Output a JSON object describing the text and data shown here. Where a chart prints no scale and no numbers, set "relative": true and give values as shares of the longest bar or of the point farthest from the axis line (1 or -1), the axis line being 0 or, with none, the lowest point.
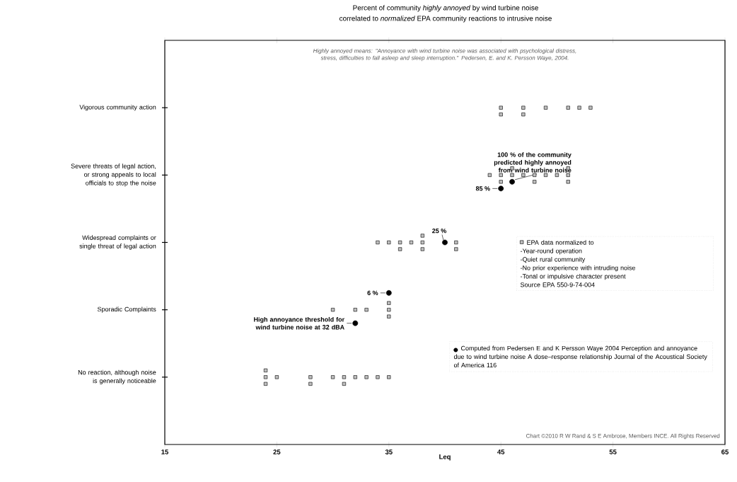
{
  "chart_data": {
    "type": "scatter",
    "title": "Percent of community *highly annoyed* by wind turbine noise",
    "subtitle": "correlated to *normalized* EPA community reactions to intrusive noise",
    "xlabel": "Leq",
    "xlim": [
      15,
      65
    ],
    "xticks": [
      15,
      25,
      35,
      45,
      55,
      65
    ],
    "relative": true,
    "legend": "bottom right",
    "series": [
      {
        "name": "EPA data normalized to",
        "color": "#000000",
        "marker": "square",
        "x": [
          24,
          24,
          24,
          25,
          28,
          28,
          30,
          31,
          31,
          32,
          33,
          34,
          35,
          30,
          32,
          33,
          35,
          35,
          35,
          34,
          35,
          36,
          36,
          37,
          38,
          38,
          38,
          41,
          41,
          44,
          45,
          45,
          46,
          46,
          47,
          48,
          48,
          49,
          50,
          51,
          51,
          51,
          45,
          45,
          47,
          47,
          49,
          51,
          52,
          53
        ],
        "values": [
          0.22,
          0.2,
          0.18,
          0.2,
          0.2,
          0.18,
          0.2,
          0.2,
          0.18,
          0.2,
          0.2,
          0.2,
          0.2,
          0.4,
          0.4,
          0.4,
          0.42,
          0.4,
          0.38,
          0.6,
          0.6,
          0.6,
          0.58,
          0.6,
          0.62,
          0.6,
          0.58,
          0.6,
          0.58,
          0.8,
          0.8,
          0.78,
          0.82,
          0.8,
          0.8,
          0.8,
          0.78,
          0.8,
          0.8,
          0.82,
          0.8,
          0.78,
          1.0,
          0.98,
          1.0,
          0.98,
          1.0,
          1.0,
          1.0,
          1.0
        ]
      },
      {
        "name": "Computed from Pedersen E and K Persson Waye 2004 Perception and annoyance due to wind turbine noise A dose–response relationship Journal of the Acoustical Society of America 116",
        "color": "#000000",
        "marker": "circle",
        "x": [
          32,
          35,
          40,
          45,
          46
        ],
        "values": [
          0.36,
          0.45,
          0.6,
          0.76,
          0.78
        ]
      }
    ],
    "annotations": [
      {
        "text": "85 %",
        "x": 45,
        "y": 0.76
      },
      {
        "text": "100 % of the community predicted highly annoyed from wind turbine noise",
        "x": 46,
        "y": 0.78
      },
      {
        "text": "25 %",
        "x": 40,
        "y": 0.6
      },
      {
        "text": "6 %",
        "x": 35,
        "y": 0.45
      },
      {
        "text": "High annoyance threshold for wind turbine noise at 32 dBA",
        "x": 32,
        "y": 0.36
      },
      "Highly annoyed means: \"Annoyance with wind turbine noise was associated with psychological distress, stress, difficulties to fall asleep and sleep interruption.\" Pedersen, E. and K. Persson Waye, 2004.",
      "-Year-round operation",
      "-Quiet rural community",
      "-No prior experience with intruding noise",
      "-Tonal or impulsive character present",
      "Source EPA 550-9-74-004",
      "Chart ©2010 R W Rand & S E Ambrose, Members INCE. All Rights Reserved",
      "No reaction, although noise is generally noticeable",
      "Sporadic Complaints",
      "Widespread complaints or single threat of legal action",
      "Severe threats of legal action, or strong appeals to local officials to stop the noise",
      "Vigorous community action"
    ]
  }
}
